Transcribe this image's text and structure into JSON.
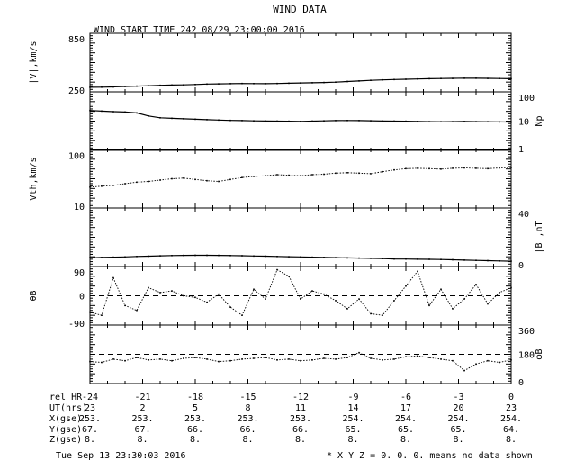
{
  "figure": {
    "title": "WIND DATA",
    "subtitle": "WIND START TIME 242 08/29 23:00:00 2016",
    "footer_left": "Tue Sep 13 23:30:03 2016",
    "footer_right": "* X Y Z = 0. 0. 0. means no data shown"
  },
  "chart_data": {
    "type": "line",
    "x": {
      "label": "rel HR",
      "range": [
        -24,
        0
      ],
      "ticks": [
        -24,
        -21,
        -18,
        -15,
        -12,
        -9,
        -6,
        -3,
        0
      ]
    },
    "panels": [
      {
        "id": "speed",
        "ylabel": "|V|,km/s",
        "ylabel_side": "left",
        "scale": "linear",
        "range": [
          250,
          850
        ],
        "tick_labels": [
          "850",
          "250"
        ],
        "values": [
          297,
          298,
          301,
          305,
          309,
          313,
          317,
          320,
          322,
          326,
          330,
          332,
          334,
          336,
          335,
          334,
          336,
          339,
          341,
          343,
          346,
          350,
          356,
          362,
          368,
          373,
          376,
          379,
          382,
          385,
          387,
          388,
          389,
          389,
          388,
          387,
          385
        ]
      },
      {
        "id": "density",
        "ylabel": "Np",
        "ylabel_side": "right",
        "scale": "log",
        "range": [
          1,
          100
        ],
        "tick_labels": [
          "100",
          "10",
          "1"
        ],
        "values": [
          23,
          22,
          21,
          20.5,
          19,
          15,
          13,
          12.5,
          12,
          11.6,
          11.2,
          10.9,
          10.6,
          10.4,
          10.2,
          10.1,
          10,
          9.9,
          9.8,
          10,
          10.2,
          10.4,
          10.5,
          10.4,
          10.3,
          10.1,
          10,
          9.9,
          9.8,
          9.6,
          9.5,
          9.6,
          9.7,
          9.6,
          9.5,
          9.4,
          9.3
        ]
      },
      {
        "id": "thermal",
        "ylabel": "Vth,km/s",
        "ylabel_side": "left",
        "scale": "log",
        "range": [
          10,
          130
        ],
        "tick_labels": [
          "100",
          "10"
        ],
        "values": [
          25,
          26,
          27,
          29,
          31,
          32,
          34,
          36,
          37,
          35,
          33,
          32,
          35,
          38,
          40,
          41,
          43,
          42,
          41,
          43,
          44,
          46,
          47,
          46,
          45,
          49,
          53,
          56,
          57,
          56,
          55,
          57,
          58,
          57,
          56,
          58,
          59
        ]
      },
      {
        "id": "bfield",
        "ylabel": "|B|,nT",
        "ylabel_side": "right",
        "scale": "linear",
        "range": [
          0,
          40
        ],
        "tick_labels": [
          "40",
          "0"
        ],
        "values": [
          6,
          6.2,
          6.4,
          6.6,
          6.9,
          7.1,
          7.3,
          7.5,
          7.6,
          7.7,
          7.7,
          7.6,
          7.5,
          7.4,
          7.2,
          7.1,
          6.9,
          6.7,
          6.6,
          6.4,
          6.3,
          6.1,
          5.9,
          5.8,
          5.6,
          5.4,
          5.2,
          5.1,
          5,
          4.9,
          4.8,
          4.6,
          4.4,
          4.2,
          4,
          3.8,
          3.6
        ]
      },
      {
        "id": "theta",
        "ylabel": "θB",
        "ylabel_side": "left",
        "scale": "linear",
        "range": [
          -90,
          90
        ],
        "tick_labels": [
          "90",
          "0",
          "-90"
        ],
        "dashed_reference": 0,
        "values": [
          -50,
          -60,
          55,
          -30,
          -45,
          25,
          10,
          15,
          0,
          -5,
          -20,
          5,
          -35,
          -60,
          20,
          -10,
          80,
          60,
          -10,
          15,
          5,
          -15,
          -40,
          -10,
          -55,
          -60,
          -15,
          30,
          75,
          -30,
          20,
          -40,
          -10,
          35,
          -25,
          10,
          25
        ]
      },
      {
        "id": "phi",
        "ylabel": "φB",
        "ylabel_side": "right",
        "scale": "linear",
        "range": [
          0,
          360
        ],
        "tick_labels": [
          "360",
          "180",
          "0"
        ],
        "dashed_reference": 180,
        "values": [
          135,
          130,
          150,
          140,
          160,
          145,
          150,
          140,
          155,
          160,
          150,
          135,
          140,
          150,
          155,
          160,
          145,
          150,
          140,
          145,
          155,
          150,
          160,
          190,
          155,
          145,
          150,
          165,
          170,
          160,
          150,
          140,
          80,
          120,
          140,
          130,
          145
        ]
      }
    ],
    "table": {
      "rows": [
        {
          "label": "rel HR",
          "values": [
            "-24",
            "-21",
            "-18",
            "-15",
            "-12",
            "-9",
            "-6",
            "-3",
            "0"
          ]
        },
        {
          "label": "UT(hrs)",
          "values": [
            "23",
            "2",
            "5",
            "8",
            "11",
            "14",
            "17",
            "20",
            "23"
          ]
        },
        {
          "label": "X(gse)",
          "values": [
            "253.",
            "253.",
            "253.",
            "253.",
            "253.",
            "254.",
            "254.",
            "254.",
            "254."
          ]
        },
        {
          "label": "Y(gse)",
          "values": [
            "67.",
            "67.",
            "66.",
            "66.",
            "66.",
            "65.",
            "65.",
            "65.",
            "64."
          ]
        },
        {
          "label": "Z(gse)",
          "values": [
            "8.",
            "8.",
            "8.",
            "8.",
            "8.",
            "8.",
            "8.",
            "8.",
            "8."
          ]
        }
      ]
    }
  }
}
